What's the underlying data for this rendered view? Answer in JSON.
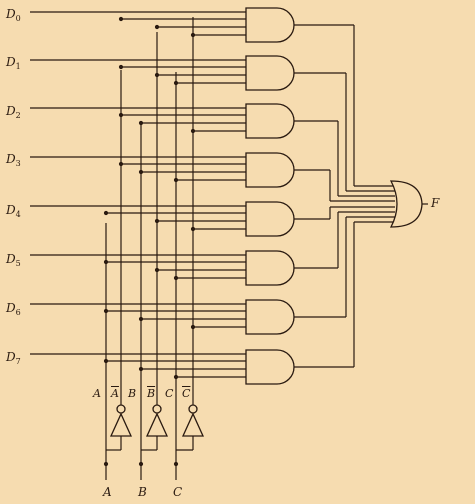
{
  "labels": {
    "d": [
      "D",
      "D",
      "D",
      "D",
      "D",
      "D",
      "D",
      "D"
    ],
    "d_sub": [
      "0",
      "1",
      "2",
      "3",
      "4",
      "5",
      "6",
      "7"
    ],
    "output": "F",
    "inputs": [
      "A",
      "B",
      "C"
    ],
    "true_lines": [
      "A",
      "B",
      "C"
    ],
    "complement_lines": [
      "A",
      "B",
      "C"
    ]
  }
}
